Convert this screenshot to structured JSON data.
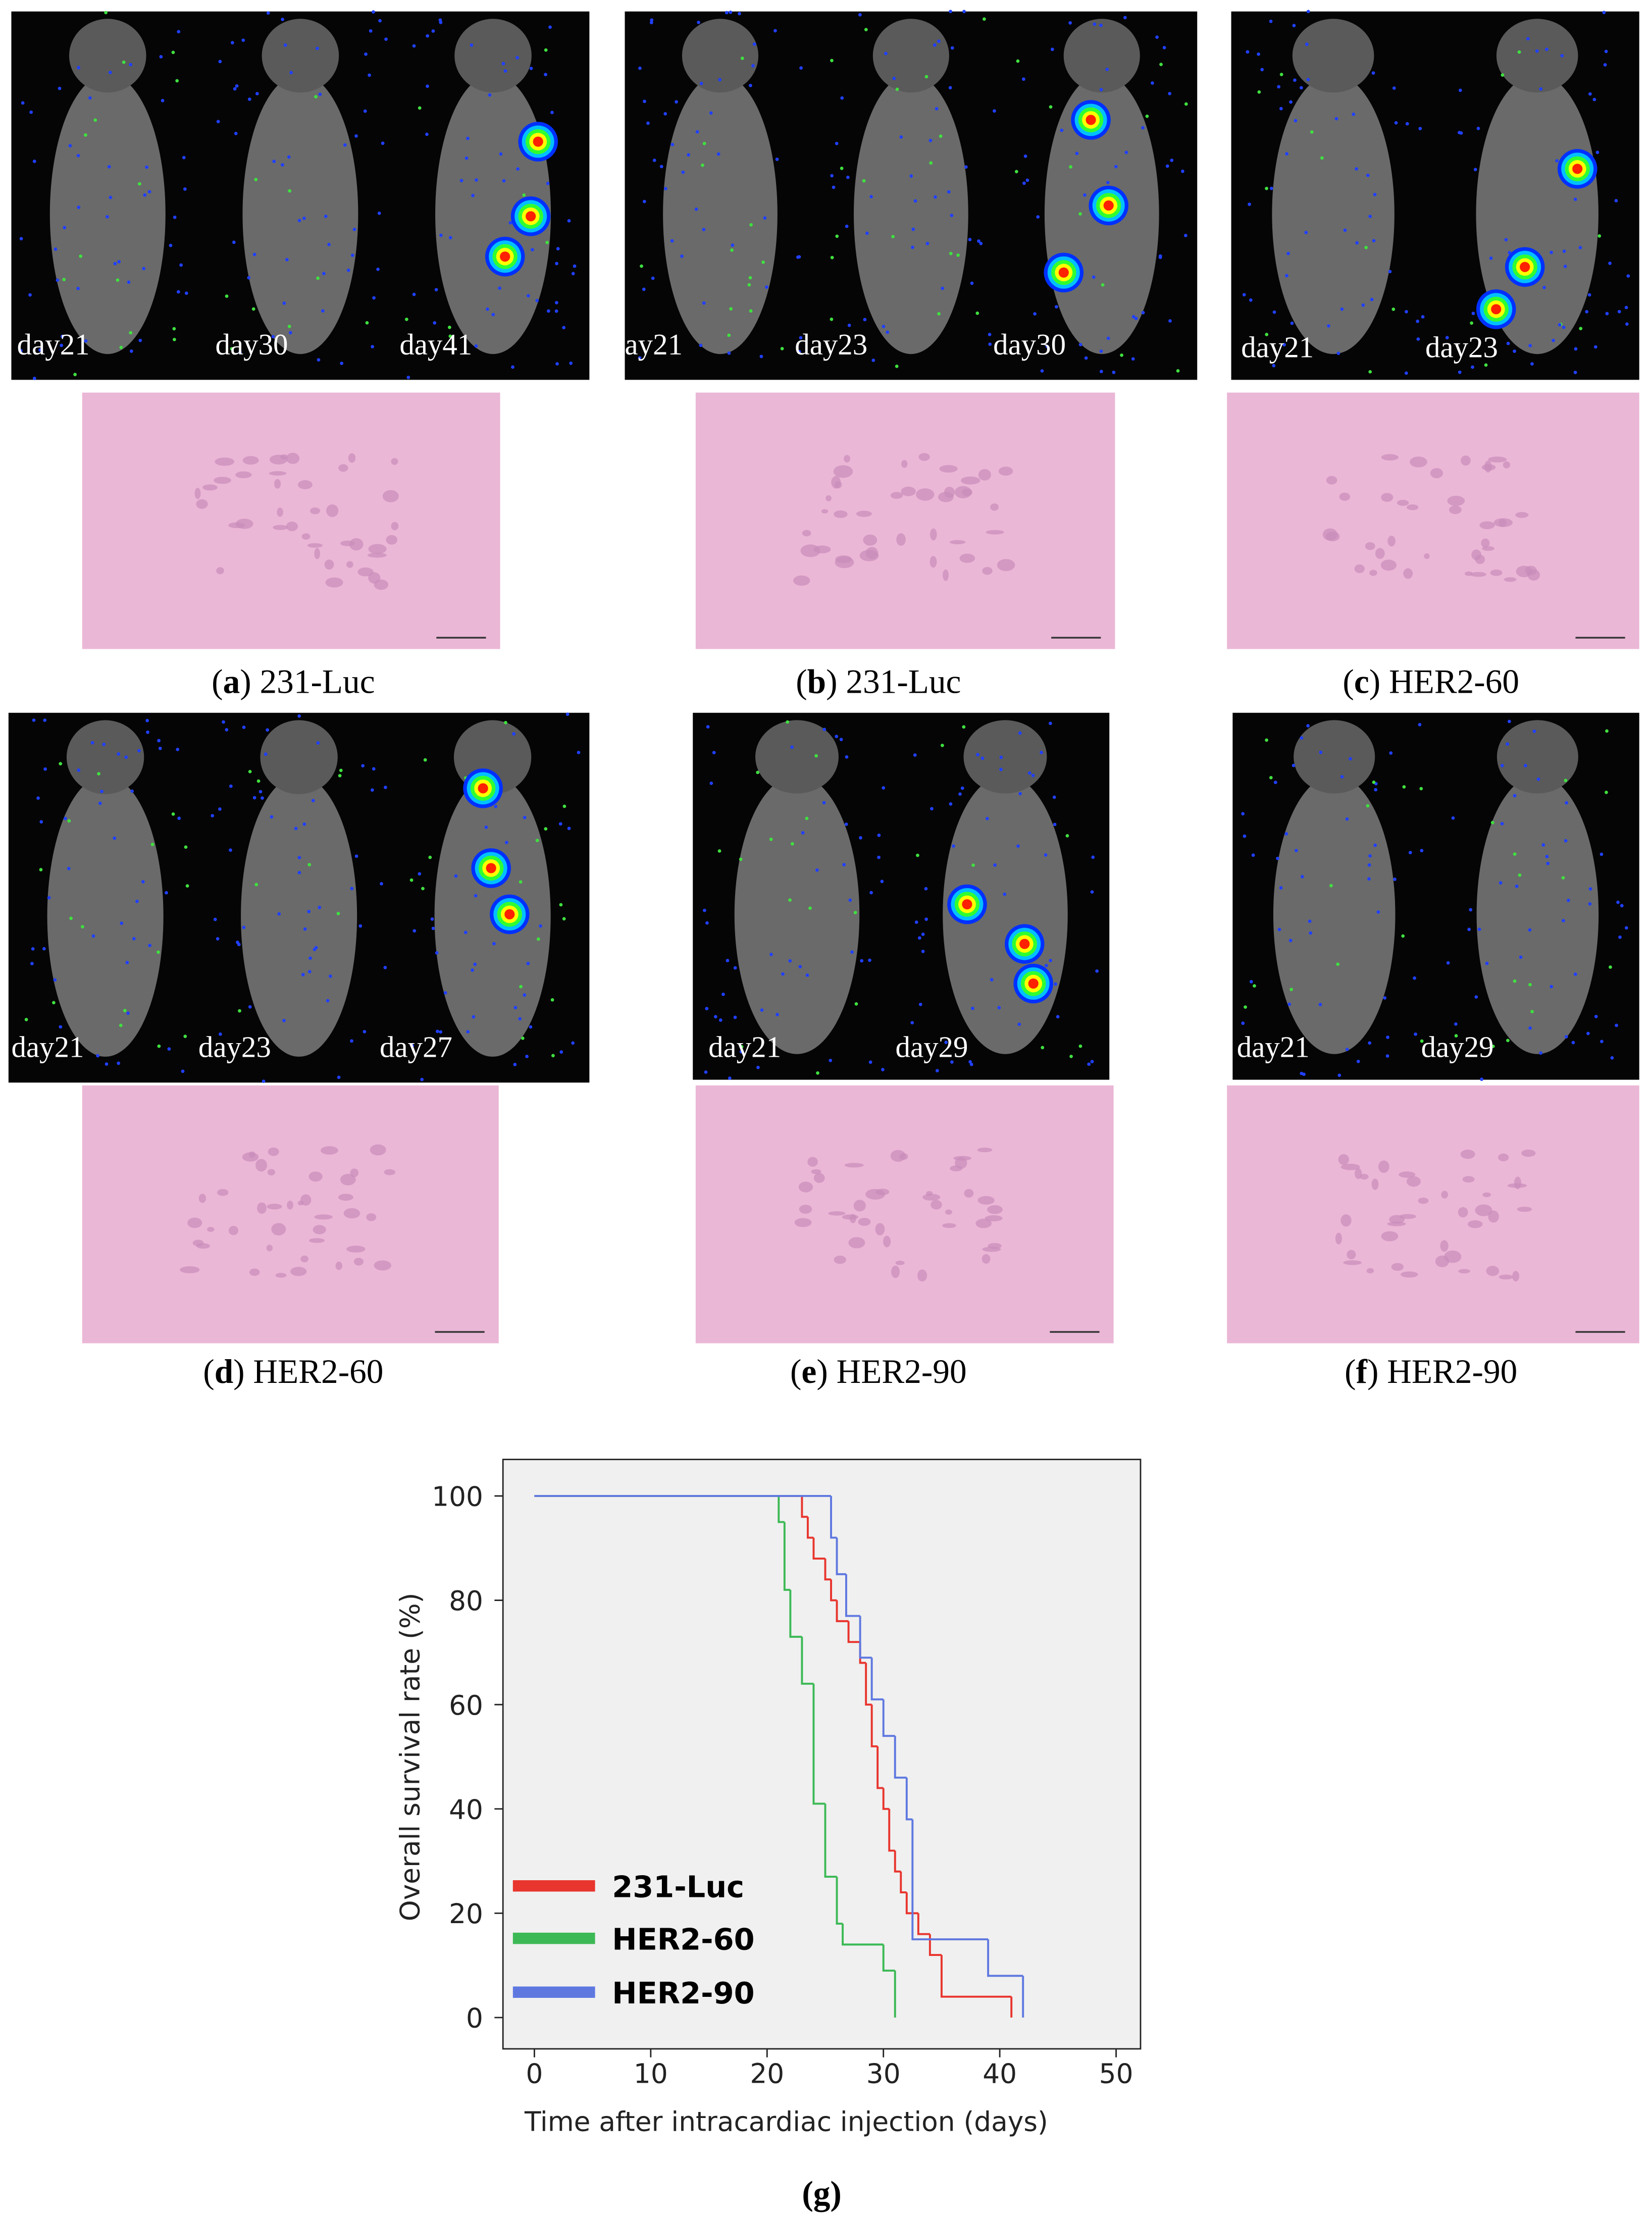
{
  "panels": [
    {
      "caption": [
        "(",
        "a",
        ") 231-Luc"
      ],
      "days": [
        "day21",
        "day30",
        "day41"
      ]
    },
    {
      "caption": [
        "(",
        "b",
        ") 231-Luc"
      ],
      "days": [
        "ay21",
        "day23",
        "day30"
      ]
    },
    {
      "caption": [
        "(",
        "c",
        ") HER2-60"
      ],
      "days": [
        "day21",
        "day23"
      ]
    },
    {
      "caption": [
        "(",
        "d",
        ") HER2-60"
      ],
      "days": [
        "day21",
        "day23",
        "day27"
      ]
    },
    {
      "caption": [
        "(",
        "e",
        ") HER2-90"
      ],
      "days": [
        "day21",
        "day29"
      ]
    },
    {
      "caption": [
        "(",
        "f",
        ") HER2-90"
      ],
      "days": [
        "day21",
        "day29"
      ]
    }
  ],
  "chart_data": {
    "type": "step",
    "caption": "(g)",
    "xlabel": "Time after intracardiac injection (days)",
    "ylabel": "Overall survival rate (%)",
    "xlim": [
      -2.7,
      52.1
    ],
    "ylim": [
      -6,
      107
    ],
    "xticks": [
      0,
      10,
      20,
      30,
      40,
      50
    ],
    "yticks": [
      0,
      20,
      40,
      60,
      80,
      100
    ],
    "legend": "lower left",
    "series": [
      {
        "name": "231-Luc",
        "color": "#e8352e",
        "x": [
          0,
          23,
          23.5,
          24,
          25,
          25.5,
          26,
          27,
          28,
          28.5,
          29,
          29.5,
          30,
          30.5,
          31,
          31.5,
          32,
          33,
          34,
          35,
          41
        ],
        "values": [
          100,
          96,
          92,
          88,
          84,
          80,
          76,
          72,
          68,
          60,
          52,
          44,
          40,
          32,
          28,
          24,
          20,
          16,
          12,
          4,
          0
        ]
      },
      {
        "name": "HER2-60",
        "color": "#3cb955",
        "x": [
          0,
          21,
          21.5,
          22,
          23,
          24,
          25,
          26,
          26.5,
          30,
          31
        ],
        "values": [
          100,
          95,
          82,
          73,
          64,
          41,
          27,
          18,
          14,
          9,
          0
        ]
      },
      {
        "name": "HER2-90",
        "color": "#5f78e0",
        "x": [
          0,
          25.5,
          26,
          26.8,
          28,
          29,
          30,
          31,
          32,
          32.5,
          39,
          42
        ],
        "values": [
          100,
          92,
          85,
          77,
          69,
          61,
          54,
          46,
          38,
          15,
          8,
          0
        ]
      }
    ]
  }
}
